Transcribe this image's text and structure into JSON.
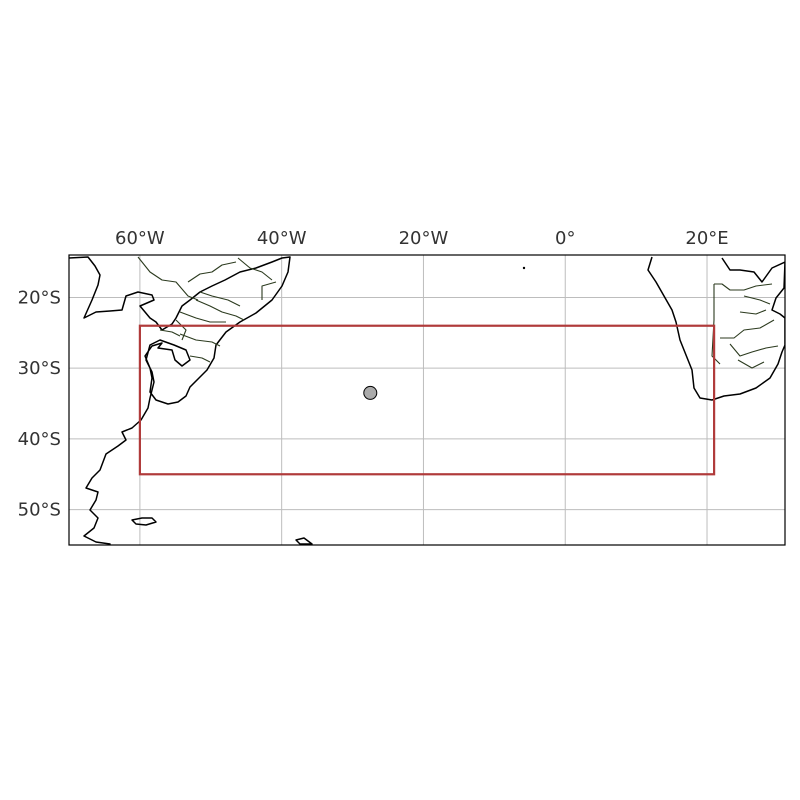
{
  "map": {
    "projection": "PlateCarree",
    "extent": {
      "lon": [
        -70,
        31
      ],
      "lat": [
        -55,
        -14
      ]
    },
    "lon_ticks": [
      {
        "value": -60,
        "label": "60°W"
      },
      {
        "value": -40,
        "label": "40°W"
      },
      {
        "value": -20,
        "label": "20°W"
      },
      {
        "value": 0,
        "label": "0°"
      },
      {
        "value": 20,
        "label": "20°E"
      }
    ],
    "lat_ticks": [
      {
        "value": -20,
        "label": "20°S"
      },
      {
        "value": -30,
        "label": "30°S"
      },
      {
        "value": -40,
        "label": "40°S"
      },
      {
        "value": -50,
        "label": "50°S"
      }
    ],
    "grid": true,
    "region_box": {
      "lon": [
        -60,
        21
      ],
      "lat": [
        -45,
        -24
      ],
      "color": "#b03a3a"
    },
    "point_marker": {
      "lon": -27.5,
      "lat": -33.5,
      "color": "#aaaaaa"
    },
    "colors": {
      "coastline": "#000000",
      "borders": "#2b3a1e",
      "grid": "#bdbdbd"
    }
  }
}
